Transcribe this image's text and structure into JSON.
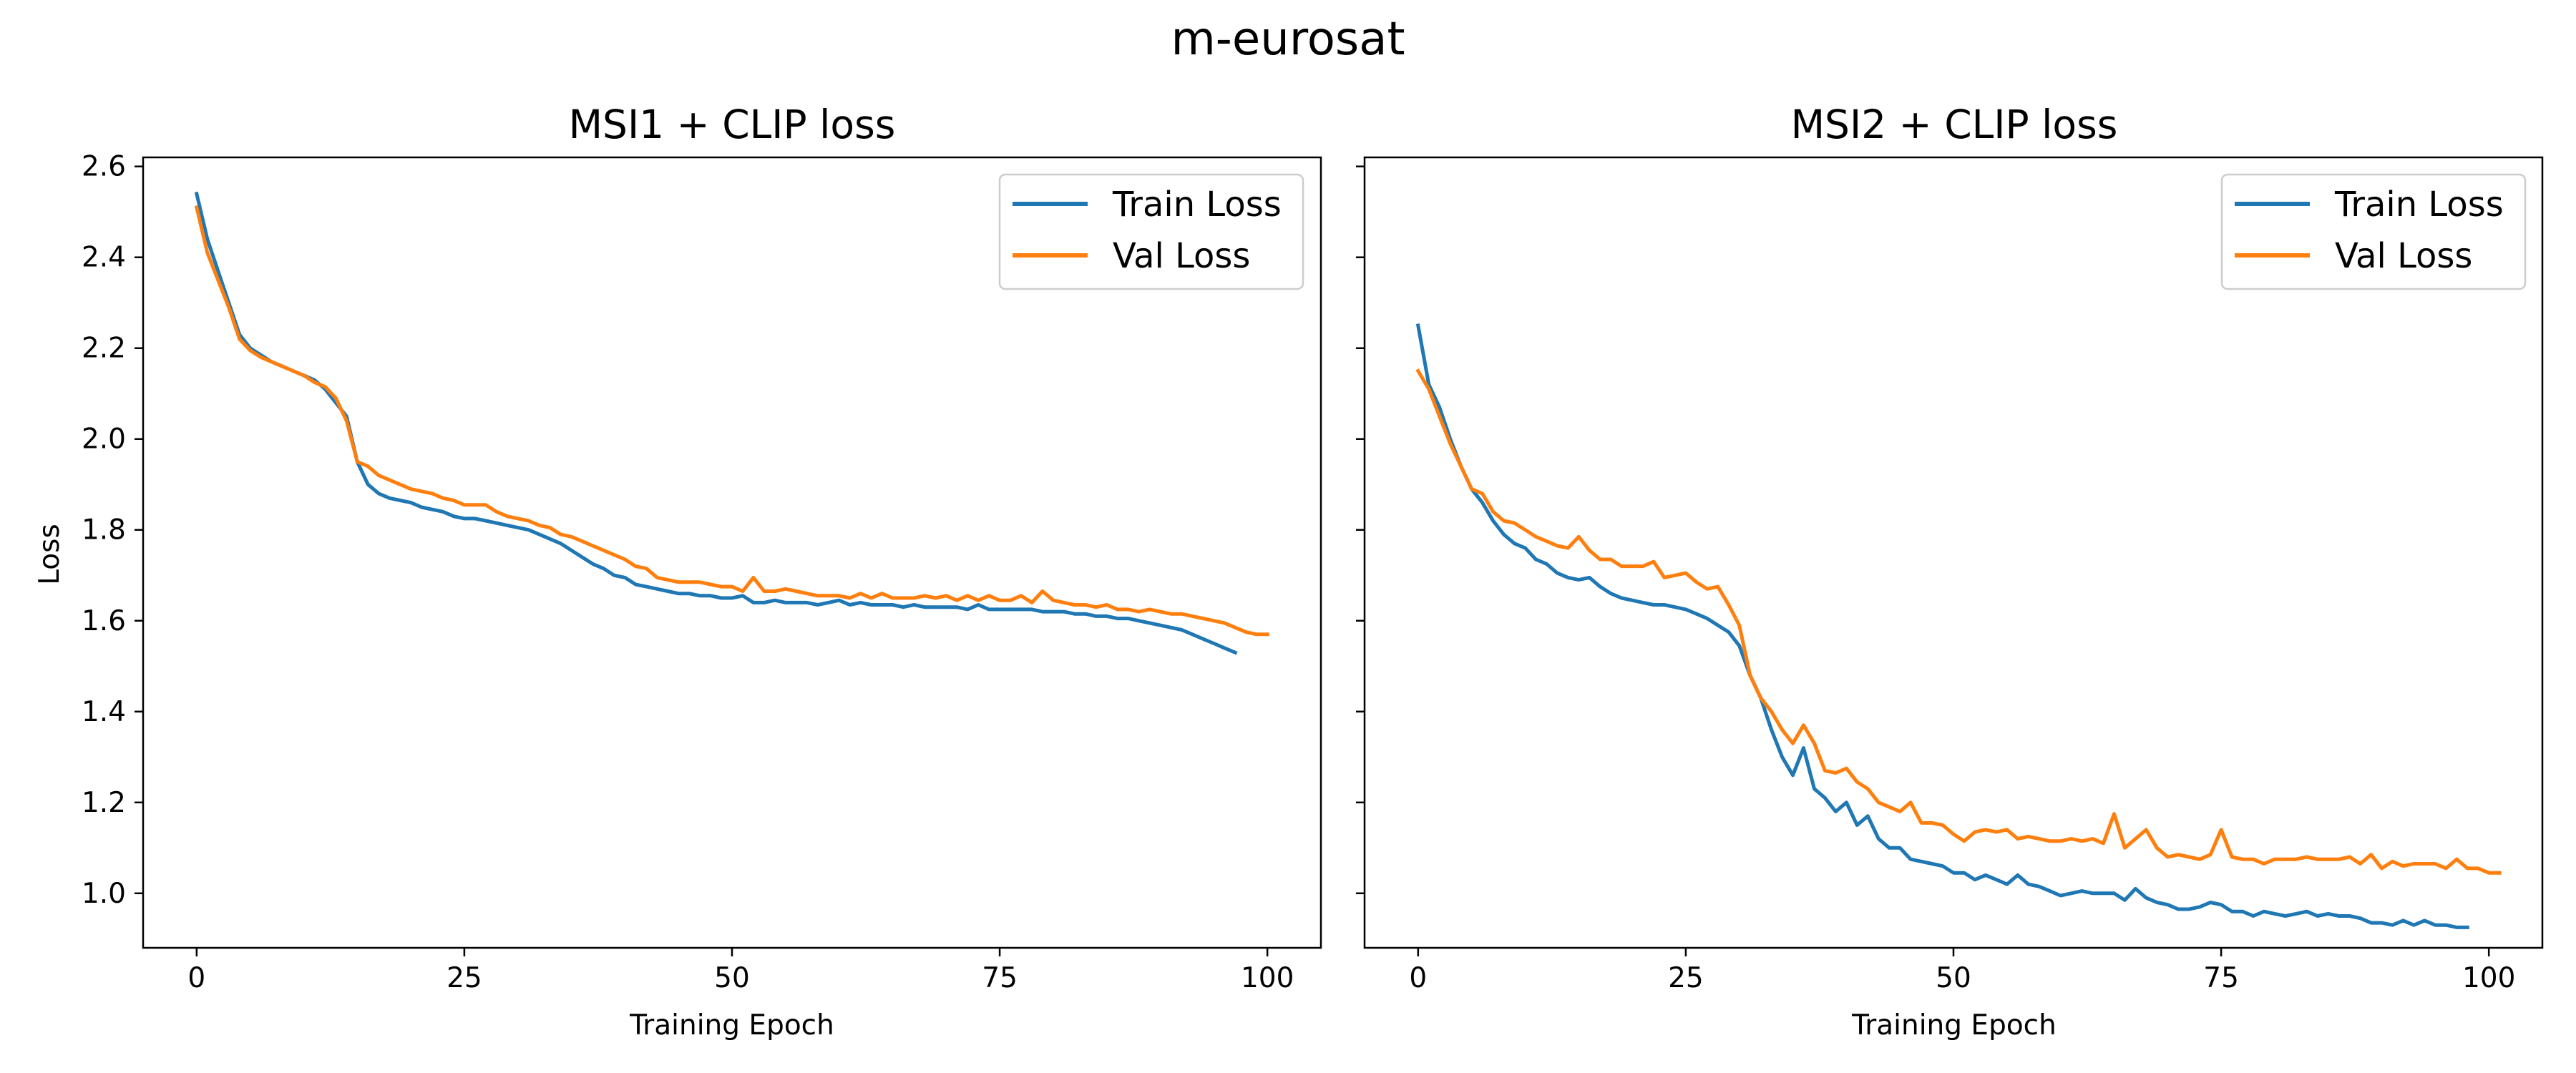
{
  "figure": {
    "title": "m-eurosat"
  },
  "colors": {
    "train": "#1f77b4",
    "val": "#ff7f0e"
  },
  "chart_data": [
    {
      "type": "line",
      "title": "MSI1 + CLIP loss",
      "xlabel": "Training Epoch",
      "ylabel": "Loss",
      "xlim": [
        -5,
        105
      ],
      "ylim": [
        0.88,
        2.62
      ],
      "xticks": [
        0,
        25,
        50,
        75,
        100
      ],
      "yticks": [
        1.0,
        1.2,
        1.4,
        1.6,
        1.8,
        2.0,
        2.2,
        2.4,
        2.6
      ],
      "grid": false,
      "legend": "top-right",
      "series": [
        {
          "name": "Train Loss",
          "x_start": 0,
          "values": [
            2.54,
            2.44,
            2.37,
            2.3,
            2.23,
            2.2,
            2.185,
            2.17,
            2.16,
            2.15,
            2.14,
            2.13,
            2.11,
            2.08,
            2.05,
            1.95,
            1.9,
            1.88,
            1.87,
            1.865,
            1.86,
            1.85,
            1.845,
            1.84,
            1.83,
            1.825,
            1.825,
            1.82,
            1.815,
            1.81,
            1.805,
            1.8,
            1.79,
            1.78,
            1.77,
            1.755,
            1.74,
            1.725,
            1.715,
            1.7,
            1.695,
            1.68,
            1.675,
            1.67,
            1.665,
            1.66,
            1.66,
            1.655,
            1.655,
            1.65,
            1.65,
            1.655,
            1.64,
            1.64,
            1.645,
            1.64,
            1.64,
            1.64,
            1.635,
            1.64,
            1.645,
            1.635,
            1.64,
            1.635,
            1.635,
            1.635,
            1.63,
            1.635,
            1.63,
            1.63,
            1.63,
            1.63,
            1.625,
            1.635,
            1.625,
            1.625,
            1.625,
            1.625,
            1.625,
            1.62,
            1.62,
            1.62,
            1.615,
            1.615,
            1.61,
            1.61,
            1.605,
            1.605,
            1.6,
            1.595,
            1.59,
            1.585,
            1.58,
            1.57,
            1.56,
            1.55,
            1.54,
            1.53
          ]
        },
        {
          "name": "Val Loss",
          "x_start": 0,
          "values": [
            2.51,
            2.41,
            2.35,
            2.29,
            2.22,
            2.195,
            2.18,
            2.17,
            2.16,
            2.15,
            2.14,
            2.125,
            2.115,
            2.09,
            2.04,
            1.95,
            1.94,
            1.92,
            1.91,
            1.9,
            1.89,
            1.885,
            1.88,
            1.87,
            1.865,
            1.855,
            1.855,
            1.855,
            1.84,
            1.83,
            1.825,
            1.82,
            1.81,
            1.805,
            1.79,
            1.785,
            1.775,
            1.765,
            1.755,
            1.745,
            1.735,
            1.72,
            1.715,
            1.695,
            1.69,
            1.685,
            1.685,
            1.685,
            1.68,
            1.675,
            1.675,
            1.665,
            1.695,
            1.665,
            1.665,
            1.67,
            1.665,
            1.66,
            1.655,
            1.655,
            1.655,
            1.65,
            1.66,
            1.65,
            1.66,
            1.65,
            1.65,
            1.65,
            1.655,
            1.65,
            1.655,
            1.645,
            1.655,
            1.645,
            1.655,
            1.645,
            1.645,
            1.655,
            1.64,
            1.665,
            1.645,
            1.64,
            1.635,
            1.635,
            1.63,
            1.635,
            1.625,
            1.625,
            1.62,
            1.625,
            1.62,
            1.615,
            1.615,
            1.61,
            1.605,
            1.6,
            1.595,
            1.585,
            1.575,
            1.57,
            1.57
          ]
        }
      ]
    },
    {
      "type": "line",
      "title": "MSI2 + CLIP loss",
      "xlabel": "Training Epoch",
      "ylabel": "",
      "xlim": [
        -5,
        105
      ],
      "ylim": [
        0.88,
        2.62
      ],
      "xticks": [
        0,
        25,
        50,
        75,
        100
      ],
      "yticks": [
        1.0,
        1.2,
        1.4,
        1.6,
        1.8,
        2.0,
        2.2,
        2.4,
        2.6
      ],
      "grid": false,
      "legend": "top-right",
      "series": [
        {
          "name": "Train Loss",
          "x_start": 0,
          "values": [
            2.25,
            2.12,
            2.07,
            2.0,
            1.94,
            1.89,
            1.86,
            1.82,
            1.79,
            1.77,
            1.76,
            1.735,
            1.725,
            1.705,
            1.695,
            1.69,
            1.695,
            1.675,
            1.66,
            1.65,
            1.645,
            1.64,
            1.635,
            1.635,
            1.63,
            1.625,
            1.615,
            1.605,
            1.59,
            1.575,
            1.545,
            1.48,
            1.43,
            1.36,
            1.3,
            1.26,
            1.32,
            1.23,
            1.21,
            1.18,
            1.2,
            1.15,
            1.17,
            1.12,
            1.1,
            1.1,
            1.075,
            1.07,
            1.065,
            1.06,
            1.045,
            1.045,
            1.03,
            1.04,
            1.03,
            1.02,
            1.04,
            1.02,
            1.015,
            1.005,
            0.995,
            1.0,
            1.005,
            1.0,
            1.0,
            1.0,
            0.985,
            1.01,
            0.99,
            0.98,
            0.975,
            0.965,
            0.965,
            0.97,
            0.98,
            0.975,
            0.96,
            0.96,
            0.95,
            0.96,
            0.955,
            0.95,
            0.955,
            0.96,
            0.95,
            0.955,
            0.95,
            0.95,
            0.945,
            0.935,
            0.935,
            0.93,
            0.94,
            0.93,
            0.94,
            0.93,
            0.93,
            0.925,
            0.925
          ]
        },
        {
          "name": "Val Loss",
          "x_start": 0,
          "values": [
            2.15,
            2.11,
            2.05,
            1.99,
            1.94,
            1.89,
            1.88,
            1.84,
            1.82,
            1.815,
            1.8,
            1.785,
            1.775,
            1.765,
            1.76,
            1.785,
            1.755,
            1.735,
            1.735,
            1.72,
            1.72,
            1.72,
            1.73,
            1.695,
            1.7,
            1.705,
            1.685,
            1.67,
            1.675,
            1.635,
            1.59,
            1.48,
            1.43,
            1.4,
            1.36,
            1.33,
            1.37,
            1.33,
            1.27,
            1.265,
            1.275,
            1.245,
            1.23,
            1.2,
            1.19,
            1.18,
            1.2,
            1.155,
            1.155,
            1.15,
            1.13,
            1.115,
            1.135,
            1.14,
            1.135,
            1.14,
            1.12,
            1.125,
            1.12,
            1.115,
            1.115,
            1.12,
            1.115,
            1.12,
            1.11,
            1.175,
            1.1,
            1.12,
            1.14,
            1.1,
            1.08,
            1.085,
            1.08,
            1.075,
            1.085,
            1.14,
            1.08,
            1.075,
            1.075,
            1.065,
            1.075,
            1.075,
            1.075,
            1.08,
            1.075,
            1.075,
            1.075,
            1.08,
            1.065,
            1.085,
            1.055,
            1.07,
            1.06,
            1.065,
            1.065,
            1.065,
            1.055,
            1.075,
            1.055,
            1.055,
            1.045,
            1.045
          ]
        }
      ]
    }
  ]
}
